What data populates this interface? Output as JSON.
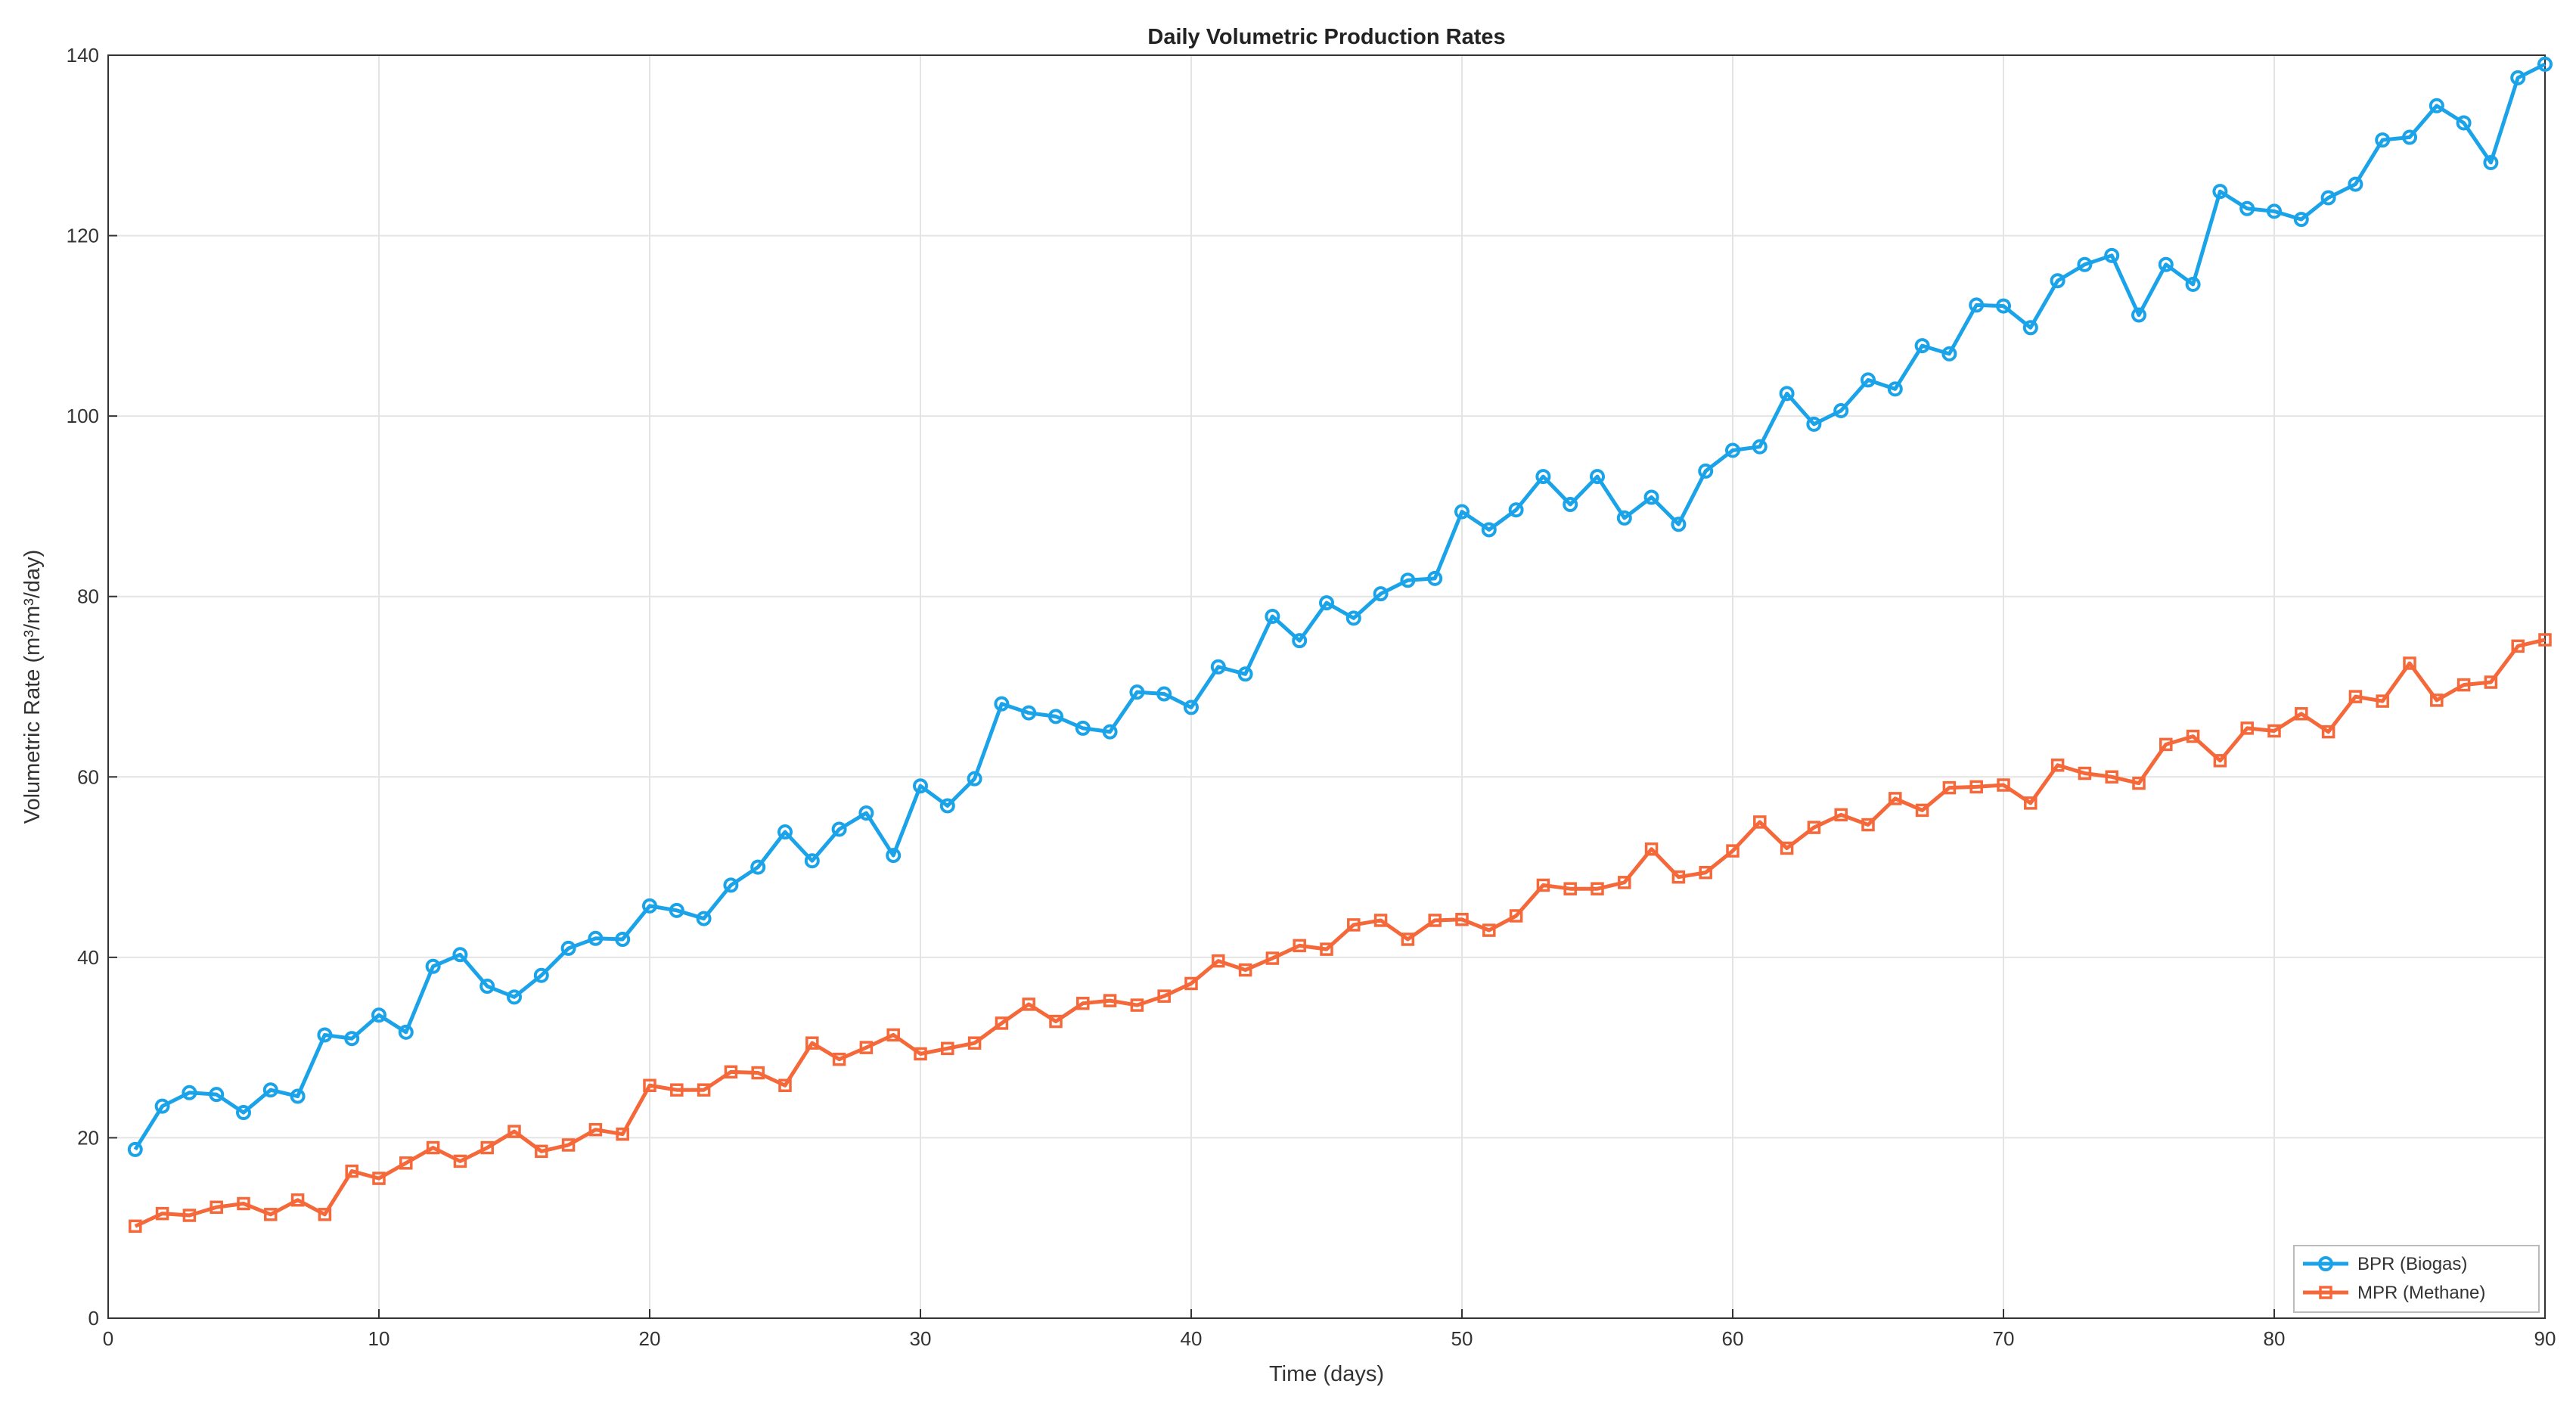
{
  "chart_data": {
    "type": "line",
    "title": "Daily Volumetric Production Rates",
    "xlabel": "Time (days)",
    "ylabel": "Volumetric Rate (m³/m³/day)",
    "xlim": [
      0,
      90
    ],
    "ylim": [
      0,
      140
    ],
    "xticks": [
      0,
      10,
      20,
      30,
      40,
      50,
      60,
      70,
      80,
      90
    ],
    "yticks": [
      0,
      20,
      40,
      60,
      80,
      100,
      120,
      140
    ],
    "grid": true,
    "legend_position": "bottom-right",
    "x": [
      1,
      2,
      3,
      4,
      5,
      6,
      7,
      8,
      9,
      10,
      11,
      12,
      13,
      14,
      15,
      16,
      17,
      18,
      19,
      20,
      21,
      22,
      23,
      24,
      25,
      26,
      27,
      28,
      29,
      30,
      31,
      32,
      33,
      34,
      35,
      36,
      37,
      38,
      39,
      40,
      41,
      42,
      43,
      44,
      45,
      46,
      47,
      48,
      49,
      50,
      51,
      52,
      53,
      54,
      55,
      56,
      57,
      58,
      59,
      60,
      61,
      62,
      63,
      64,
      65,
      66,
      67,
      68,
      69,
      70,
      71,
      72,
      73,
      74,
      75,
      76,
      77,
      78,
      79,
      80,
      81,
      82,
      83,
      84,
      85,
      86,
      87,
      88,
      89,
      90
    ],
    "series": [
      {
        "name": "BPR (Biogas)",
        "color": "#1aa3e8",
        "marker": "circle",
        "values": [
          18.7,
          23.5,
          25.0,
          24.8,
          22.8,
          25.3,
          24.6,
          31.4,
          31.0,
          33.6,
          31.7,
          39.0,
          40.3,
          36.8,
          35.6,
          38.0,
          41.0,
          42.1,
          42.0,
          45.7,
          45.2,
          44.3,
          48.0,
          50.0,
          53.9,
          50.7,
          54.2,
          56.0,
          51.3,
          59.0,
          56.8,
          59.8,
          68.1,
          67.1,
          66.7,
          65.4,
          65.0,
          69.4,
          69.2,
          67.7,
          72.2,
          71.4,
          77.8,
          75.1,
          79.3,
          77.6,
          80.3,
          81.8,
          82.0,
          89.4,
          87.4,
          89.6,
          93.3,
          90.2,
          93.3,
          88.7,
          91.0,
          88.0,
          93.9,
          96.2,
          96.6,
          102.5,
          99.1,
          100.6,
          104.0,
          103.0,
          107.8,
          106.9,
          112.3,
          112.2,
          109.8,
          115.0,
          116.8,
          117.8,
          111.2,
          116.8,
          114.6,
          124.9,
          123.0,
          122.7,
          121.8,
          124.2,
          125.7,
          130.6,
          130.9,
          134.4,
          132.5,
          128.1,
          137.5,
          139.0
        ]
      },
      {
        "name": "MPR (Methane)",
        "color": "#f4683a",
        "marker": "square",
        "values": [
          10.2,
          11.6,
          11.4,
          12.3,
          12.7,
          11.5,
          13.1,
          11.5,
          16.3,
          15.5,
          17.2,
          18.9,
          17.4,
          18.9,
          20.7,
          18.5,
          19.2,
          20.9,
          20.4,
          25.8,
          25.3,
          25.3,
          27.3,
          27.2,
          25.8,
          30.5,
          28.7,
          30.0,
          31.4,
          29.3,
          29.9,
          30.5,
          32.7,
          34.8,
          32.9,
          34.9,
          35.2,
          34.7,
          35.7,
          37.1,
          39.6,
          38.6,
          39.9,
          41.3,
          40.9,
          43.6,
          44.1,
          42.0,
          44.1,
          44.2,
          43.0,
          44.6,
          48.0,
          47.6,
          47.6,
          48.3,
          52.0,
          48.9,
          49.4,
          51.8,
          55.0,
          52.1,
          54.4,
          55.8,
          54.7,
          57.6,
          56.3,
          58.8,
          58.9,
          59.1,
          57.1,
          61.3,
          60.4,
          60.0,
          59.3,
          63.6,
          64.5,
          61.8,
          65.4,
          65.1,
          67.0,
          65.0,
          68.9,
          68.4,
          72.6,
          68.5,
          70.2,
          70.5,
          74.5,
          75.2
        ]
      }
    ]
  }
}
